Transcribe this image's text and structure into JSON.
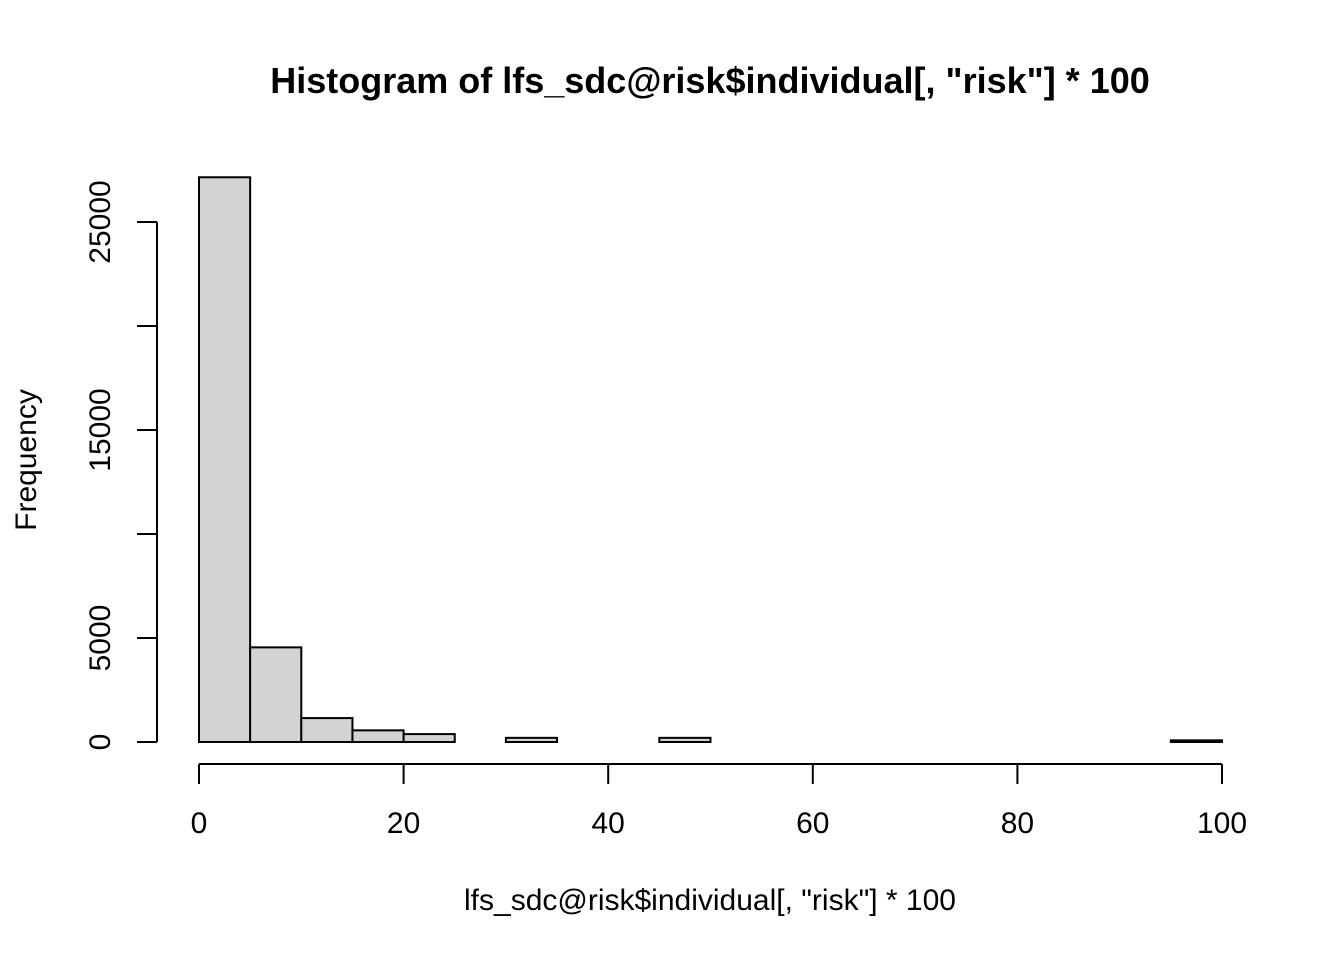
{
  "chart_data": {
    "type": "bar",
    "subtype": "histogram",
    "title": "Histogram of lfs_sdc@risk$individual[, \"risk\"] * 100",
    "xlabel": "lfs_sdc@risk$individual[, \"risk\"] * 100",
    "ylabel": "Frequency",
    "bin_width": 5,
    "bins": [
      {
        "from": 0,
        "to": 5,
        "count": 27150
      },
      {
        "from": 5,
        "to": 10,
        "count": 4550
      },
      {
        "from": 10,
        "to": 15,
        "count": 1150
      },
      {
        "from": 15,
        "to": 20,
        "count": 560
      },
      {
        "from": 20,
        "to": 25,
        "count": 380
      },
      {
        "from": 25,
        "to": 30,
        "count": 0
      },
      {
        "from": 30,
        "to": 35,
        "count": 200
      },
      {
        "from": 35,
        "to": 40,
        "count": 0
      },
      {
        "from": 40,
        "to": 45,
        "count": 0
      },
      {
        "from": 45,
        "to": 50,
        "count": 200
      },
      {
        "from": 50,
        "to": 55,
        "count": 0
      },
      {
        "from": 55,
        "to": 60,
        "count": 0
      },
      {
        "from": 60,
        "to": 65,
        "count": 0
      },
      {
        "from": 65,
        "to": 70,
        "count": 0
      },
      {
        "from": 70,
        "to": 75,
        "count": 0
      },
      {
        "from": 75,
        "to": 80,
        "count": 0
      },
      {
        "from": 80,
        "to": 85,
        "count": 0
      },
      {
        "from": 85,
        "to": 90,
        "count": 0
      },
      {
        "from": 90,
        "to": 95,
        "count": 0
      },
      {
        "from": 95,
        "to": 100,
        "count": 80
      }
    ],
    "xlim": [
      0,
      100
    ],
    "ylim": [
      0,
      27150
    ],
    "x_ticks": [
      0,
      20,
      40,
      60,
      80,
      100
    ],
    "y_ticks": [
      0,
      5000,
      10000,
      15000,
      20000,
      25000
    ],
    "y_tick_labels": [
      "0",
      "5000",
      "",
      "15000",
      "",
      "25000"
    ],
    "bar_fill": "#d3d3d3",
    "bar_stroke": "#000000",
    "grid": false,
    "legend": "none"
  }
}
